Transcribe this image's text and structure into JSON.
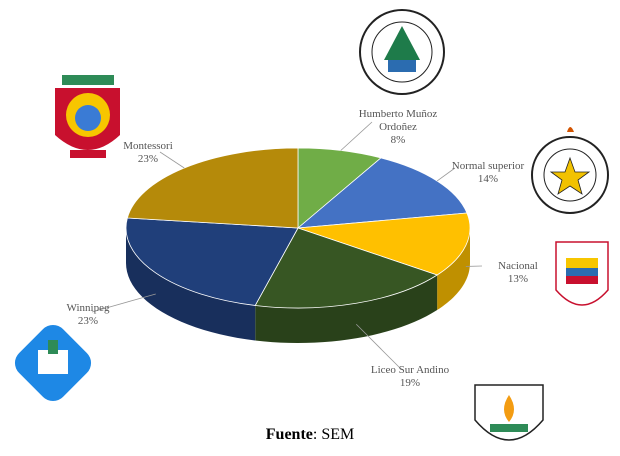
{
  "chart_data": {
    "type": "pie3d",
    "categories": [
      "Humberto Muñoz Ordoñez",
      "Normal superior",
      "Nacional",
      "Liceo Sur Andino",
      "Winnipeg",
      "Montessori"
    ],
    "values": [
      8,
      14,
      13,
      19,
      23,
      23
    ],
    "value_labels": [
      "8%",
      "14%",
      "13%",
      "19%",
      "23%",
      "23%"
    ],
    "colors": [
      "#70ad47",
      "#4472c4",
      "#ffc000",
      "#375623",
      "#203f7a",
      "#b58a0a"
    ],
    "caption_label": "Fuente",
    "caption_text": ": SEM"
  }
}
